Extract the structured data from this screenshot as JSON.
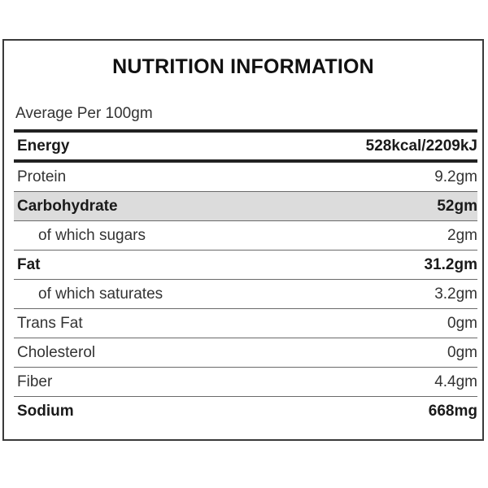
{
  "panel": {
    "title": "NUTRITION INFORMATION",
    "subtitle": "Average Per 100gm"
  },
  "rows": [
    {
      "label": "Energy",
      "value": "528kcal/2209kJ"
    },
    {
      "label": "Protein",
      "value": "9.2gm"
    },
    {
      "label": "Carbohydrate",
      "value": "52gm"
    },
    {
      "label": "of which sugars",
      "value": "2gm"
    },
    {
      "label": "Fat",
      "value": "31.2gm"
    },
    {
      "label": "of which saturates",
      "value": "3.2gm"
    },
    {
      "label": "Trans Fat",
      "value": "0gm"
    },
    {
      "label": "Cholesterol",
      "value": "0gm"
    },
    {
      "label": "Fiber",
      "value": "4.4gm"
    },
    {
      "label": "Sodium",
      "value": "668mg"
    }
  ],
  "colors": {
    "border": "#3a3a3a",
    "shaded_row": "#dcdcdc",
    "text": "#333333"
  }
}
